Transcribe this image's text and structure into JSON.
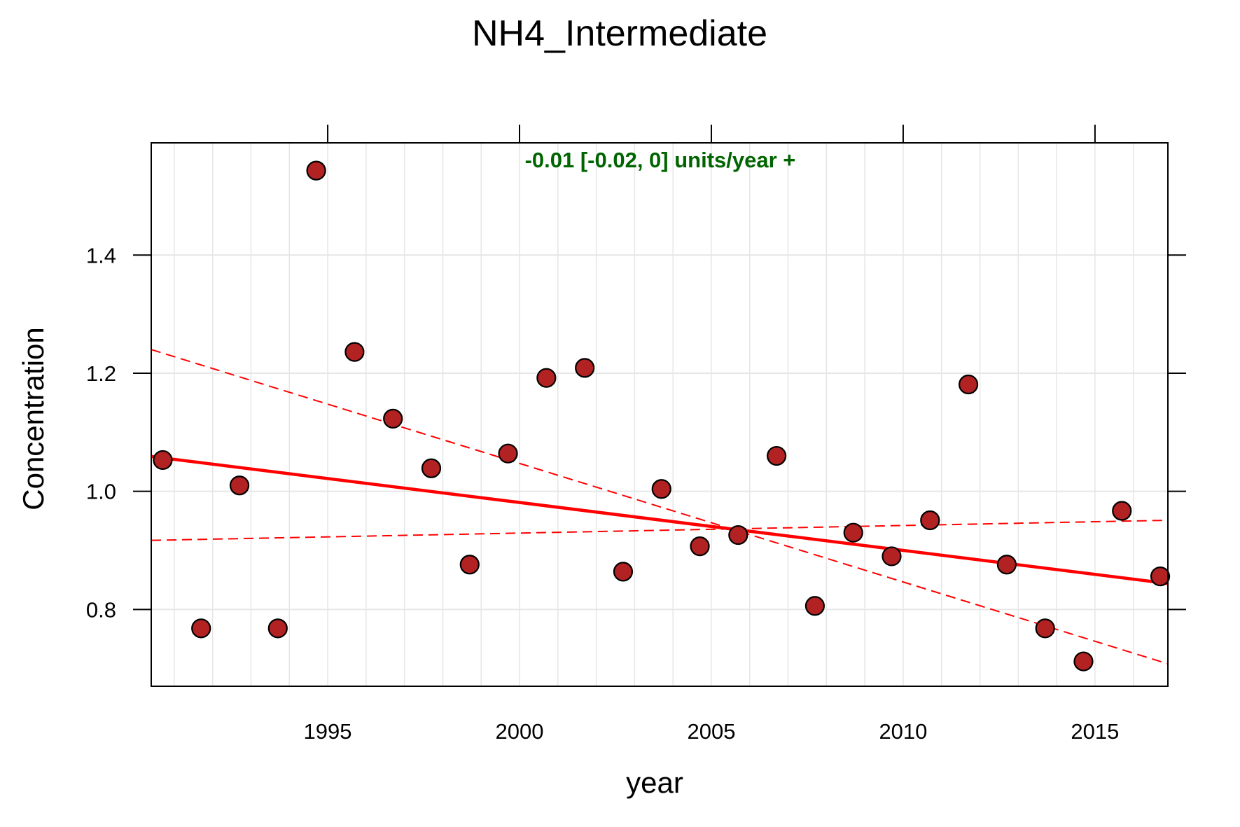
{
  "chart_data": {
    "type": "scatter",
    "title": "NH4_Intermediate",
    "xlabel": "year",
    "ylabel": "Concentration",
    "annotation": "-0.01 [-0.02, 0] units/year +",
    "xlim": [
      1990.4,
      2016.9
    ],
    "ylim": [
      0.67,
      1.59
    ],
    "x_ticks": [
      1995,
      2000,
      2005,
      2010,
      2015
    ],
    "x_tick_labels": [
      "1995",
      "2000",
      "2005",
      "2010",
      "2015"
    ],
    "y_ticks": [
      0.8,
      1.0,
      1.2,
      1.4
    ],
    "y_tick_labels": [
      "0.8",
      "1.0",
      "1.2",
      "1.4"
    ],
    "grid": true,
    "series": [
      {
        "type": "scatter",
        "x": [
          1990.7,
          1991.7,
          1992.7,
          1993.7,
          1994.7,
          1995.7,
          1996.7,
          1997.7,
          1998.7,
          1999.7,
          2000.7,
          2001.7,
          2002.7,
          2003.7,
          2004.7,
          2005.7,
          2006.7,
          2007.7,
          2008.7,
          2009.7,
          2010.7,
          2011.7,
          2012.7,
          2013.7,
          2014.7,
          2015.7,
          2016.7
        ],
        "values": [
          1.053,
          0.768,
          1.01,
          0.768,
          1.543,
          1.236,
          1.123,
          1.039,
          0.876,
          1.064,
          1.192,
          1.209,
          0.864,
          1.004,
          0.907,
          0.926,
          1.06,
          0.806,
          0.93,
          0.89,
          0.951,
          1.181,
          0.876,
          0.768,
          0.712,
          0.967,
          0.856
        ]
      },
      {
        "type": "line",
        "style": "solid",
        "x": [
          1990.4,
          2016.9
        ],
        "values": [
          1.059,
          0.844
        ]
      },
      {
        "type": "line",
        "style": "dashed",
        "x": [
          1990.4,
          2016.9
        ],
        "values": [
          1.24,
          0.708
        ]
      },
      {
        "type": "line",
        "style": "dashed",
        "x": [
          1990.4,
          2016.9
        ],
        "values": [
          0.917,
          0.951
        ]
      }
    ],
    "colors": {
      "point_fill": "#b22222",
      "point_stroke": "#000000",
      "trend_line": "#ff0000",
      "annotation": "#006400",
      "grid": "#e6e6e6"
    }
  }
}
